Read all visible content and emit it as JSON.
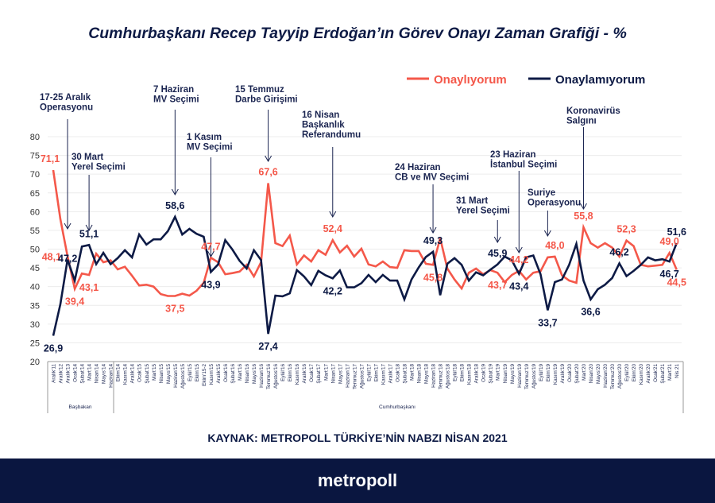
{
  "title": "Cumhurbaşkanı Recep Tayyip Erdoğan’ın Görev Onayı Zaman Grafiği - %",
  "source": "KAYNAK: METROPOLL TÜRKİYE’NİN NABZI NİSAN 2021",
  "brand": "metropoll",
  "colors": {
    "approve": "#f4584a",
    "disapprove": "#0d1a45",
    "footer": "#0a1640"
  },
  "chart_data": {
    "type": "line",
    "ylim": [
      20,
      80
    ],
    "yticks": [
      "20",
      "25",
      "30",
      "35",
      "40",
      "45",
      "50",
      "55",
      "60",
      "65",
      "70",
      "75",
      "80"
    ],
    "grid": true,
    "legend_position": "top-right",
    "categories": [
      "Aralık'11",
      "Aralık'12",
      "Aralık'13",
      "Ocak'14",
      "Şubat'14",
      "Mart'14",
      "Nisan'14",
      "Mayıs'14",
      "Haziran'14",
      "Ekim'14",
      "Kasım'14",
      "Aralık'14",
      "Ocak'15",
      "Şubat'15",
      "Mart'15",
      "Nisan'15",
      "Mayıs'15",
      "Haziran'15",
      "Ağustos'15",
      "Eylül'15",
      "Ekim'15",
      "Ekim'15-2",
      "Kasım'15",
      "Aralık'15",
      "Ocak'16",
      "Şubat'16",
      "Mart'16",
      "Nisan'16",
      "Mayıs'16",
      "Haziran'16",
      "Temmuz'16",
      "Ağustos'16",
      "Eylül'16",
      "Ekim'16",
      "Kasım'16",
      "Aralık'16",
      "Ocak'17",
      "Şubat'17",
      "Mart'17",
      "Nisan'17",
      "Mayıs'17",
      "Haziran'17",
      "Temmuz'17",
      "Ağustos'17",
      "Eylül'17",
      "Ekim'17",
      "Kasım'17",
      "Aralık'17",
      "Ocak'18",
      "Şubat'18",
      "Mart'18",
      "Nisan'18",
      "Mayıs'18",
      "Haziran'18",
      "Temmuz'18",
      "Ağustos'18",
      "Eylül'18",
      "Ekim'18",
      "Kasım'18",
      "Aralık'18",
      "Ocak'19",
      "Şubat'19",
      "Mart'19",
      "Nisan'19",
      "Mayıs'19",
      "Haziran'19",
      "Temmuz'19",
      "Ağustos'19",
      "Eylül'19",
      "Ekim'19",
      "Kasım'19",
      "Aralık'19",
      "Ocak'20",
      "Şubat'20",
      "Mart'20",
      "Nisan'20",
      "Mayıs'20",
      "Haziran'20",
      "Temmuz'20",
      "Ağustos'20",
      "Eylül'20",
      "Ekim'20",
      "Kasım'20",
      "Aralık'20",
      "Ocak'21",
      "Şubat'21",
      "Mart'21",
      "Nis.21"
    ],
    "groups": [
      {
        "label": "Başbakan",
        "from": 0,
        "to": 8
      },
      {
        "label": "Cumhurbaşkanı",
        "from": 9,
        "to": 87
      }
    ],
    "series": [
      {
        "name": "Onaylıyorum",
        "color": "#f4584a",
        "values": [
          71.1,
          58,
          48.1,
          39.4,
          43.5,
          43.1,
          48.8,
          46.5,
          47,
          44.6,
          45.3,
          42.9,
          40.3,
          40.5,
          40,
          38,
          37.5,
          37.5,
          38.1,
          37.6,
          38.9,
          41,
          47.7,
          46.5,
          43.3,
          43.6,
          44,
          45.8,
          42.7,
          46.5,
          67.6,
          51.6,
          50.8,
          53.6,
          45.9,
          48.3,
          46.7,
          49.7,
          48.5,
          52.4,
          49.1,
          50.9,
          48,
          50.1,
          45.9,
          45.4,
          46.7,
          45.2,
          45,
          49.7,
          49.5,
          49.5,
          46.1,
          45.8,
          52.9,
          44.8,
          41.9,
          39.5,
          43.7,
          44.8,
          43.3,
          44.4,
          43.7,
          41.2,
          43.1,
          44.2,
          41.9,
          43.7,
          44.1,
          47.8,
          48,
          43,
          41.6,
          41,
          55.8,
          51.6,
          50.4,
          51.6,
          50.4,
          48,
          52.3,
          50.8,
          45.8,
          45.4,
          45.6,
          45.8,
          49,
          44.5
        ]
      },
      {
        "name": "Onaylamıyorum",
        "color": "#0d1a45",
        "values": [
          26.9,
          35.3,
          47.2,
          41.6,
          50.7,
          51.1,
          46,
          49,
          46,
          47.6,
          49.7,
          47.8,
          53.9,
          51.2,
          52.6,
          52.6,
          54.8,
          58.6,
          53.9,
          55.4,
          54.1,
          53.3,
          43.9,
          45.9,
          52.4,
          49.9,
          46.9,
          44.8,
          49.7,
          47.1,
          27.4,
          37.6,
          37.4,
          38.2,
          44.4,
          42.7,
          40.4,
          44.2,
          43,
          42.2,
          44.3,
          39.8,
          39.8,
          40.9,
          43.1,
          41.2,
          43.1,
          41.6,
          41.6,
          36.6,
          41.9,
          45.1,
          47.9,
          49.3,
          37.7,
          46.1,
          47.6,
          45.8,
          41.6,
          43.8,
          43,
          44.5,
          45.9,
          48,
          47,
          43.4,
          47.8,
          48.3,
          43.3,
          33.7,
          41.2,
          41.9,
          45.8,
          51.4,
          41.6,
          36.6,
          39.3,
          40.5,
          42.3,
          46.2,
          42.8,
          44.2,
          45.8,
          47.8,
          47,
          47.3,
          46.7,
          51.6
        ]
      }
    ],
    "data_labels": [
      {
        "series": 0,
        "index": 0,
        "text": "71,1",
        "place": "above"
      },
      {
        "series": 1,
        "index": 0,
        "text": "26,9",
        "place": "below"
      },
      {
        "series": 0,
        "index": 2,
        "text": "48,1",
        "place": "left"
      },
      {
        "series": 1,
        "index": 2,
        "text": "47,2",
        "place": "right"
      },
      {
        "series": 0,
        "index": 3,
        "text": "39,4",
        "place": "below"
      },
      {
        "series": 1,
        "index": 5,
        "text": "51,1",
        "place": "above"
      },
      {
        "series": 0,
        "index": 5,
        "text": "43,1",
        "place": "below"
      },
      {
        "series": 1,
        "index": 17,
        "text": "58,6",
        "place": "above"
      },
      {
        "series": 0,
        "index": 17,
        "text": "37,5",
        "place": "below"
      },
      {
        "series": 0,
        "index": 22,
        "text": "47,7",
        "place": "above"
      },
      {
        "series": 1,
        "index": 22,
        "text": "43,9",
        "place": "below"
      },
      {
        "series": 0,
        "index": 30,
        "text": "67,6",
        "place": "above"
      },
      {
        "series": 1,
        "index": 30,
        "text": "27,4",
        "place": "below"
      },
      {
        "series": 0,
        "index": 39,
        "text": "52,4",
        "place": "above"
      },
      {
        "series": 1,
        "index": 39,
        "text": "42,2",
        "place": "below"
      },
      {
        "series": 1,
        "index": 53,
        "text": "49,3",
        "place": "above"
      },
      {
        "series": 0,
        "index": 53,
        "text": "45,8",
        "place": "below"
      },
      {
        "series": 1,
        "index": 62,
        "text": "45,9",
        "place": "above"
      },
      {
        "series": 0,
        "index": 62,
        "text": "43,7",
        "place": "below"
      },
      {
        "series": 0,
        "index": 65,
        "text": "44,2",
        "place": "above"
      },
      {
        "series": 1,
        "index": 65,
        "text": "43,4",
        "place": "below"
      },
      {
        "series": 1,
        "index": 69,
        "text": "33,7",
        "place": "below"
      },
      {
        "series": 0,
        "index": 70,
        "text": "48,0",
        "place": "above"
      },
      {
        "series": 0,
        "index": 74,
        "text": "55,8",
        "place": "above"
      },
      {
        "series": 1,
        "index": 75,
        "text": "36,6",
        "place": "below"
      },
      {
        "series": 1,
        "index": 79,
        "text": "46,2",
        "place": "above"
      },
      {
        "series": 0,
        "index": 80,
        "text": "52,3",
        "place": "above"
      },
      {
        "series": 0,
        "index": 86,
        "text": "49,0",
        "place": "above"
      },
      {
        "series": 1,
        "index": 86,
        "text": "46,7",
        "place": "below"
      },
      {
        "series": 1,
        "index": 87,
        "text": "51,6",
        "place": "above"
      },
      {
        "series": 0,
        "index": 87,
        "text": "44,5",
        "place": "below"
      }
    ],
    "annotations": [
      {
        "index": 2,
        "lines": [
          "17-25 Aralık",
          "Operasyonu"
        ]
      },
      {
        "index": 5,
        "lines": [
          "30 Mart",
          "Yerel Seçimi"
        ]
      },
      {
        "index": 17,
        "lines": [
          "7 Haziran",
          "MV Seçimi"
        ]
      },
      {
        "index": 22,
        "lines": [
          "1 Kasım",
          "MV Seçimi"
        ]
      },
      {
        "index": 30,
        "lines": [
          "15 Temmuz",
          "Darbe Girişimi"
        ]
      },
      {
        "index": 39,
        "lines": [
          "16 Nisan",
          "Başkanlık",
          "Referandumu"
        ]
      },
      {
        "index": 53,
        "lines": [
          "24 Haziran",
          "CB  ve MV Seçimi"
        ]
      },
      {
        "index": 62,
        "lines": [
          "31 Mart",
          "Yerel Seçimi"
        ]
      },
      {
        "index": 65,
        "lines": [
          "23 Haziran",
          "İstanbul Seçimi"
        ]
      },
      {
        "index": 69,
        "lines": [
          "Suriye",
          "Operasyonu"
        ]
      },
      {
        "index": 74,
        "lines": [
          "Koronavirüs",
          "Salgını"
        ]
      }
    ]
  }
}
